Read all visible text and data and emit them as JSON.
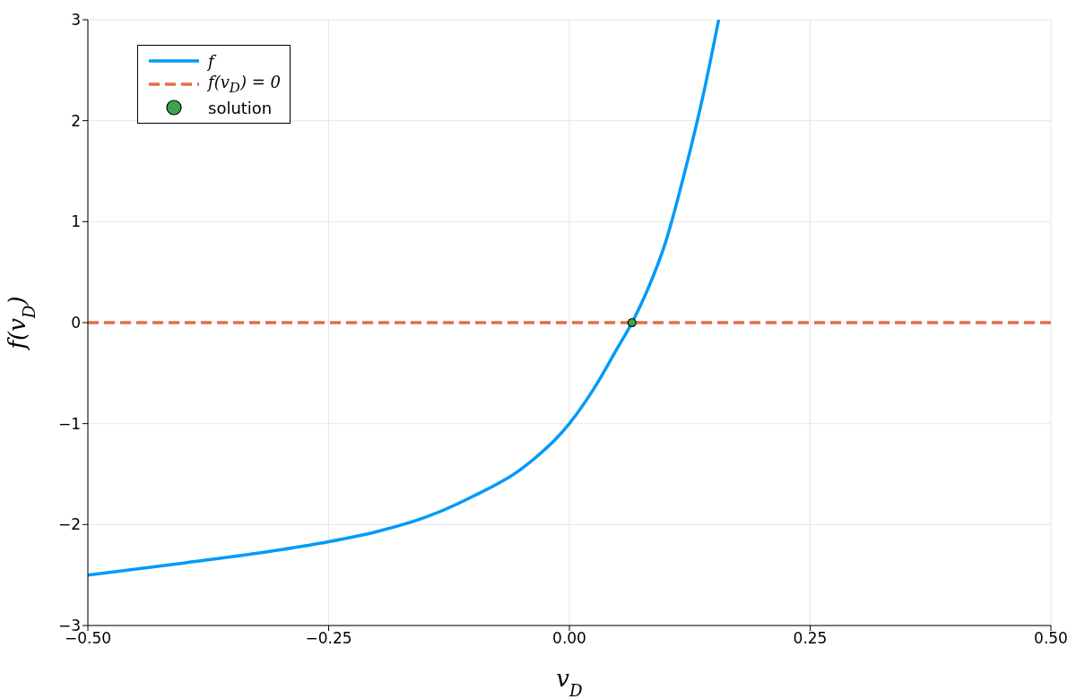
{
  "chart_data": {
    "type": "line",
    "xlabel": "v$_{D}$",
    "ylabel": "f(v$_{D}$)",
    "xlim": [
      -0.5,
      0.5
    ],
    "xticks": [
      {
        "value": -0.5,
        "label": "−0.50"
      },
      {
        "value": -0.25,
        "label": "−0.25"
      },
      {
        "value": 0,
        "label": "0.00"
      },
      {
        "value": 0.25,
        "label": "0.25"
      },
      {
        "value": 0.5,
        "label": "0.50"
      }
    ],
    "ylim": [
      -3,
      3
    ],
    "yticks": [
      {
        "value": -3,
        "label": "−3"
      },
      {
        "value": -2,
        "label": "−2"
      },
      {
        "value": -1,
        "label": "−1"
      },
      0,
      1,
      2,
      3
    ],
    "grid": true,
    "legend": "top left",
    "series": [
      {
        "name": "f",
        "type": "line",
        "color": "#009af9",
        "line_style": "solid",
        "x": [
          -0.5,
          -0.4,
          -0.3,
          -0.25,
          -0.2,
          -0.15,
          -0.1,
          -0.05,
          0,
          0.025,
          0.05,
          0.065,
          0.08,
          0.1,
          0.12,
          0.14,
          0.155
        ],
        "values": [
          -2.5,
          -2.38,
          -2.25,
          -2.17,
          -2.07,
          -1.93,
          -1.72,
          -1.45,
          -1.0,
          -0.66,
          -0.25,
          0,
          0.3,
          0.8,
          1.5,
          2.3,
          3.0
        ]
      },
      {
        "name": "f(v$_{D}$) = 0",
        "type": "line",
        "color": "#e26f46",
        "line_style": "dashed",
        "x": [
          -0.5,
          0.5
        ],
        "values": [
          0,
          0
        ]
      },
      {
        "name": "solution",
        "type": "scatter",
        "color": "#3da44d",
        "marker": "circle",
        "x": [
          0.065
        ],
        "values": [
          0
        ]
      }
    ]
  }
}
